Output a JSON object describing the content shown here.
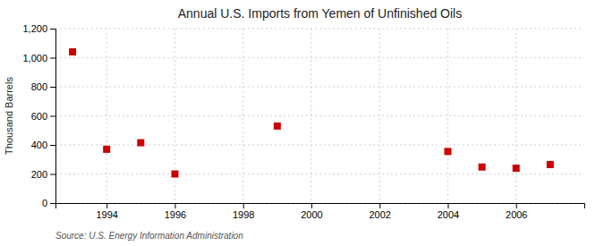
{
  "chart_data": {
    "type": "scatter",
    "title": "Annual U.S. Imports from Yemen of Unfinished Oils",
    "ylabel": "Thousand Barrels",
    "source": "Source: U.S. Energy Information Administration",
    "x": [
      1993,
      1994,
      1995,
      1996,
      1999,
      2004,
      2005,
      2006,
      2007
    ],
    "values": [
      1040,
      370,
      415,
      200,
      530,
      355,
      248,
      240,
      265
    ],
    "color": "#cc0000",
    "marker": "square",
    "xlim": [
      1992.5,
      2008
    ],
    "ylim": [
      0,
      1200
    ],
    "xticks": [
      1994,
      1996,
      1998,
      2000,
      2002,
      2004,
      2006
    ],
    "yticks": [
      0,
      200,
      400,
      600,
      800,
      {
        "value": 1000,
        "label": "1,000"
      },
      {
        "value": 1200,
        "label": "1,200"
      }
    ],
    "grid": true
  }
}
